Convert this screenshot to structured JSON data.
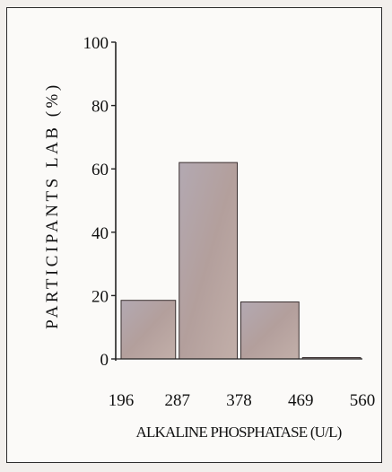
{
  "chart_data": {
    "type": "bar",
    "title": "",
    "xlabel": "ALKALINE PHOSPHATASE (U/L)",
    "ylabel": "PARTICIPANTS LAB (%)",
    "bin_edges": [
      196,
      287,
      378,
      469,
      560
    ],
    "x_tick_labels": [
      "196",
      "287",
      "378",
      "469",
      "560"
    ],
    "categories": [
      "196-287",
      "287-378",
      "378-469",
      "469-560"
    ],
    "values": [
      18.5,
      62,
      18,
      0
    ],
    "ylim": [
      0,
      100
    ],
    "y_ticks": [
      0,
      20,
      40,
      60,
      80,
      100
    ],
    "y_tick_labels": [
      "0",
      "20",
      "40",
      "60",
      "80",
      "100"
    ],
    "grid": false,
    "legend": "none",
    "colors": {
      "bar_fill": "#b9a5a2",
      "bar_fill_center": "#a8a4b0",
      "bar_stroke": "#3a3030",
      "axis": "#222222",
      "text": "#111111"
    }
  }
}
